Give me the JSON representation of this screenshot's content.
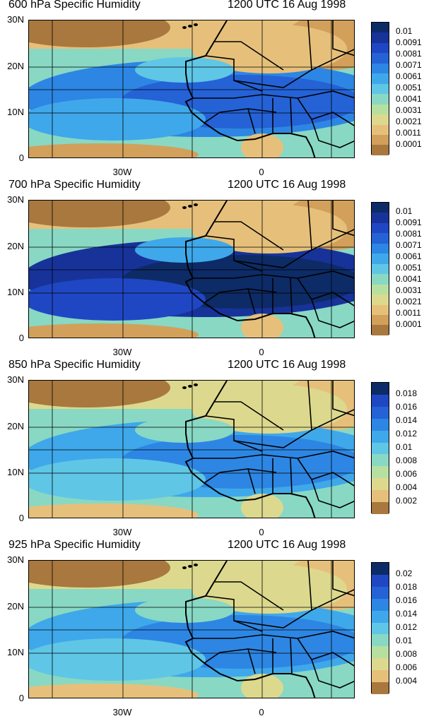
{
  "panels": [
    {
      "title": "600 hPa Specific Humidity",
      "time": "1200 UTC 16 Aug 1998",
      "y_ticks": [
        "30N",
        "20N",
        "10N",
        "0"
      ],
      "x_ticks": [
        "30W",
        "0"
      ],
      "colorbar_labels": [
        "0.01",
        "0.0091",
        "0.0081",
        "0.0071",
        "0.0061",
        "0.0051",
        "0.0041",
        "0.0031",
        "0.0021",
        "0.0011",
        "0.0001"
      ],
      "colorbar_colors": [
        "#0d2b66",
        "#17339a",
        "#1f47c4",
        "#2462d6",
        "#2d86e3",
        "#3fa8ea",
        "#5fc6e6",
        "#88d8c4",
        "#b6e0a0",
        "#dcd98e",
        "#e6c07a",
        "#d2a05a",
        "#a8783e"
      ],
      "dominant": "mid"
    },
    {
      "title": "700 hPa Specific Humidity",
      "time": "1200 UTC 16 Aug 1998",
      "y_ticks": [
        "30N",
        "20N",
        "10N",
        "0"
      ],
      "x_ticks": [
        "30W",
        "0"
      ],
      "colorbar_labels": [
        "0.01",
        "0.0091",
        "0.0081",
        "0.0071",
        "0.0061",
        "0.0051",
        "0.0041",
        "0.0031",
        "0.0021",
        "0.0011",
        "0.0001"
      ],
      "colorbar_colors": [
        "#0d2b66",
        "#17339a",
        "#1f47c4",
        "#2462d6",
        "#2d86e3",
        "#3fa8ea",
        "#5fc6e6",
        "#88d8c4",
        "#b6e0a0",
        "#dcd98e",
        "#e6c07a",
        "#d2a05a",
        "#a8783e"
      ],
      "dominant": "moist"
    },
    {
      "title": "850 hPa Specific Humidity",
      "time": "1200 UTC 16 Aug 1998",
      "y_ticks": [
        "30N",
        "20N",
        "10N",
        "0"
      ],
      "x_ticks": [
        "30W",
        "0"
      ],
      "colorbar_labels": [
        "0.018",
        "0.016",
        "0.014",
        "0.012",
        "0.01",
        "0.008",
        "0.006",
        "0.004",
        "0.002"
      ],
      "colorbar_colors": [
        "#0d2b66",
        "#1f47c4",
        "#2462d6",
        "#2d86e3",
        "#3fa8ea",
        "#5fc6e6",
        "#88d8c4",
        "#b6e0a0",
        "#dcd98e",
        "#e6c07a",
        "#a8783e"
      ],
      "dominant": "mid"
    },
    {
      "title": "925 hPa Specific Humidity",
      "time": "1200 UTC 16 Aug 1998",
      "y_ticks": [
        "30N",
        "20N",
        "10N",
        "0"
      ],
      "x_ticks": [
        "30W",
        "0"
      ],
      "colorbar_labels": [
        "0.02",
        "0.018",
        "0.016",
        "0.014",
        "0.012",
        "0.01",
        "0.008",
        "0.006",
        "0.004"
      ],
      "colorbar_colors": [
        "#0d2b66",
        "#1f47c4",
        "#2462d6",
        "#2d86e3",
        "#3fa8ea",
        "#5fc6e6",
        "#88d8c4",
        "#b6e0a0",
        "#dcd98e",
        "#e6c07a",
        "#a8783e"
      ],
      "dominant": "mid"
    }
  ]
}
